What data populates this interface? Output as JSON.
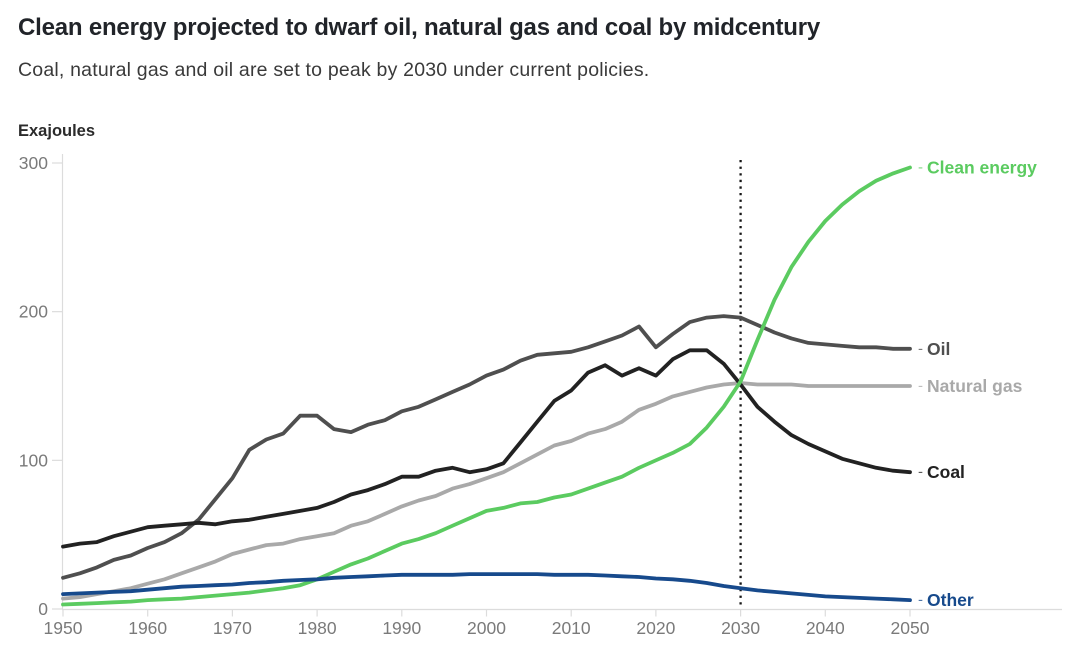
{
  "header": {
    "title": "Clean energy projected to dwarf oil, natural gas and coal by midcentury",
    "subtitle": "Coal, natural gas and oil are set to peak by 2030 under current policies.",
    "unit_label": "Exajoules"
  },
  "colors": {
    "clean_energy": "#5bcb60",
    "oil": "#4f4f4f",
    "natural_gas": "#a9a9a9",
    "coal": "#222222",
    "other": "#174a8c",
    "axis": "#dcdcdc",
    "tick_text": "#7a7a7a",
    "dotted_line": "#161616"
  },
  "chart_data": {
    "type": "line",
    "title": "Clean energy projected to dwarf oil, natural gas and coal by midcentury",
    "subtitle": "Coal, natural gas and oil are set to peak by 2030 under current policies.",
    "ylabel": "Exajoules",
    "xlabel": "",
    "xlim": [
      1950,
      2050
    ],
    "ylim": [
      0,
      300
    ],
    "grid": "off",
    "legend_position": "right-edge-line-labels",
    "y_ticks": [
      0,
      100,
      200,
      300
    ],
    "x_ticks": [
      1950,
      1960,
      1970,
      1980,
      1990,
      2000,
      2010,
      2020,
      2030,
      2040,
      2050
    ],
    "annotation": {
      "type": "vertical-dotted-line",
      "x": 2030
    },
    "x": [
      1950,
      1952,
      1954,
      1956,
      1958,
      1960,
      1962,
      1964,
      1966,
      1968,
      1970,
      1972,
      1974,
      1976,
      1978,
      1980,
      1982,
      1984,
      1986,
      1988,
      1990,
      1992,
      1994,
      1996,
      1998,
      2000,
      2002,
      2004,
      2006,
      2008,
      2010,
      2012,
      2014,
      2016,
      2018,
      2020,
      2022,
      2024,
      2026,
      2028,
      2030,
      2032,
      2034,
      2036,
      2038,
      2040,
      2042,
      2044,
      2046,
      2048,
      2050
    ],
    "series": [
      {
        "name": "Oil",
        "color_key": "oil",
        "values": [
          21,
          24,
          28,
          33,
          36,
          41,
          45,
          51,
          60,
          74,
          88,
          107,
          114,
          118,
          130,
          130,
          121,
          119,
          124,
          127,
          133,
          136,
          141,
          146,
          151,
          157,
          161,
          167,
          171,
          172,
          173,
          176,
          180,
          184,
          190,
          176,
          185,
          193,
          196,
          197,
          196,
          191,
          186,
          182,
          179,
          178,
          177,
          176,
          176,
          175,
          175
        ]
      },
      {
        "name": "Natural gas",
        "color_key": "natural_gas",
        "values": [
          7,
          8,
          10,
          12,
          14,
          17,
          20,
          24,
          28,
          32,
          37,
          40,
          43,
          44,
          47,
          49,
          51,
          56,
          59,
          64,
          69,
          73,
          76,
          81,
          84,
          88,
          92,
          98,
          104,
          110,
          113,
          118,
          121,
          126,
          134,
          138,
          143,
          146,
          149,
          151,
          152,
          151,
          151,
          151,
          150,
          150,
          150,
          150,
          150,
          150,
          150
        ]
      },
      {
        "name": "Coal",
        "color_key": "coal",
        "values": [
          42,
          44,
          45,
          49,
          52,
          55,
          56,
          57,
          58,
          57,
          59,
          60,
          62,
          64,
          66,
          68,
          72,
          77,
          80,
          84,
          89,
          89,
          93,
          95,
          92,
          94,
          98,
          112,
          126,
          140,
          147,
          159,
          164,
          157,
          162,
          157,
          168,
          174,
          174,
          165,
          151,
          136,
          126,
          117,
          111,
          106,
          101,
          98,
          95,
          93,
          92
        ]
      },
      {
        "name": "Clean energy",
        "color_key": "clean_energy",
        "values": [
          3,
          3.5,
          4,
          4.5,
          5,
          6,
          6.5,
          7,
          8,
          9,
          10,
          11,
          12.5,
          14,
          16,
          20,
          25,
          30,
          34,
          39,
          44,
          47,
          51,
          56,
          61,
          66,
          68,
          71,
          72,
          75,
          77,
          81,
          85,
          89,
          95,
          100,
          105,
          111,
          122,
          136,
          153,
          181,
          208,
          230,
          247,
          261,
          272,
          281,
          288,
          293,
          297
        ]
      },
      {
        "name": "Other",
        "color_key": "other",
        "values": [
          10,
          10.5,
          11,
          11.5,
          12,
          13,
          14,
          15,
          15.5,
          16,
          16.5,
          17.5,
          18,
          19,
          19.5,
          20,
          21,
          21.5,
          22,
          22.5,
          23,
          23,
          23,
          23,
          23.5,
          23.5,
          23.5,
          23.5,
          23.5,
          23,
          23,
          23,
          22.5,
          22,
          21.5,
          20.5,
          20,
          19,
          17.5,
          15.5,
          14,
          12.5,
          11.5,
          10.5,
          9.5,
          8.5,
          8,
          7.5,
          7,
          6.5,
          6
        ]
      }
    ]
  }
}
